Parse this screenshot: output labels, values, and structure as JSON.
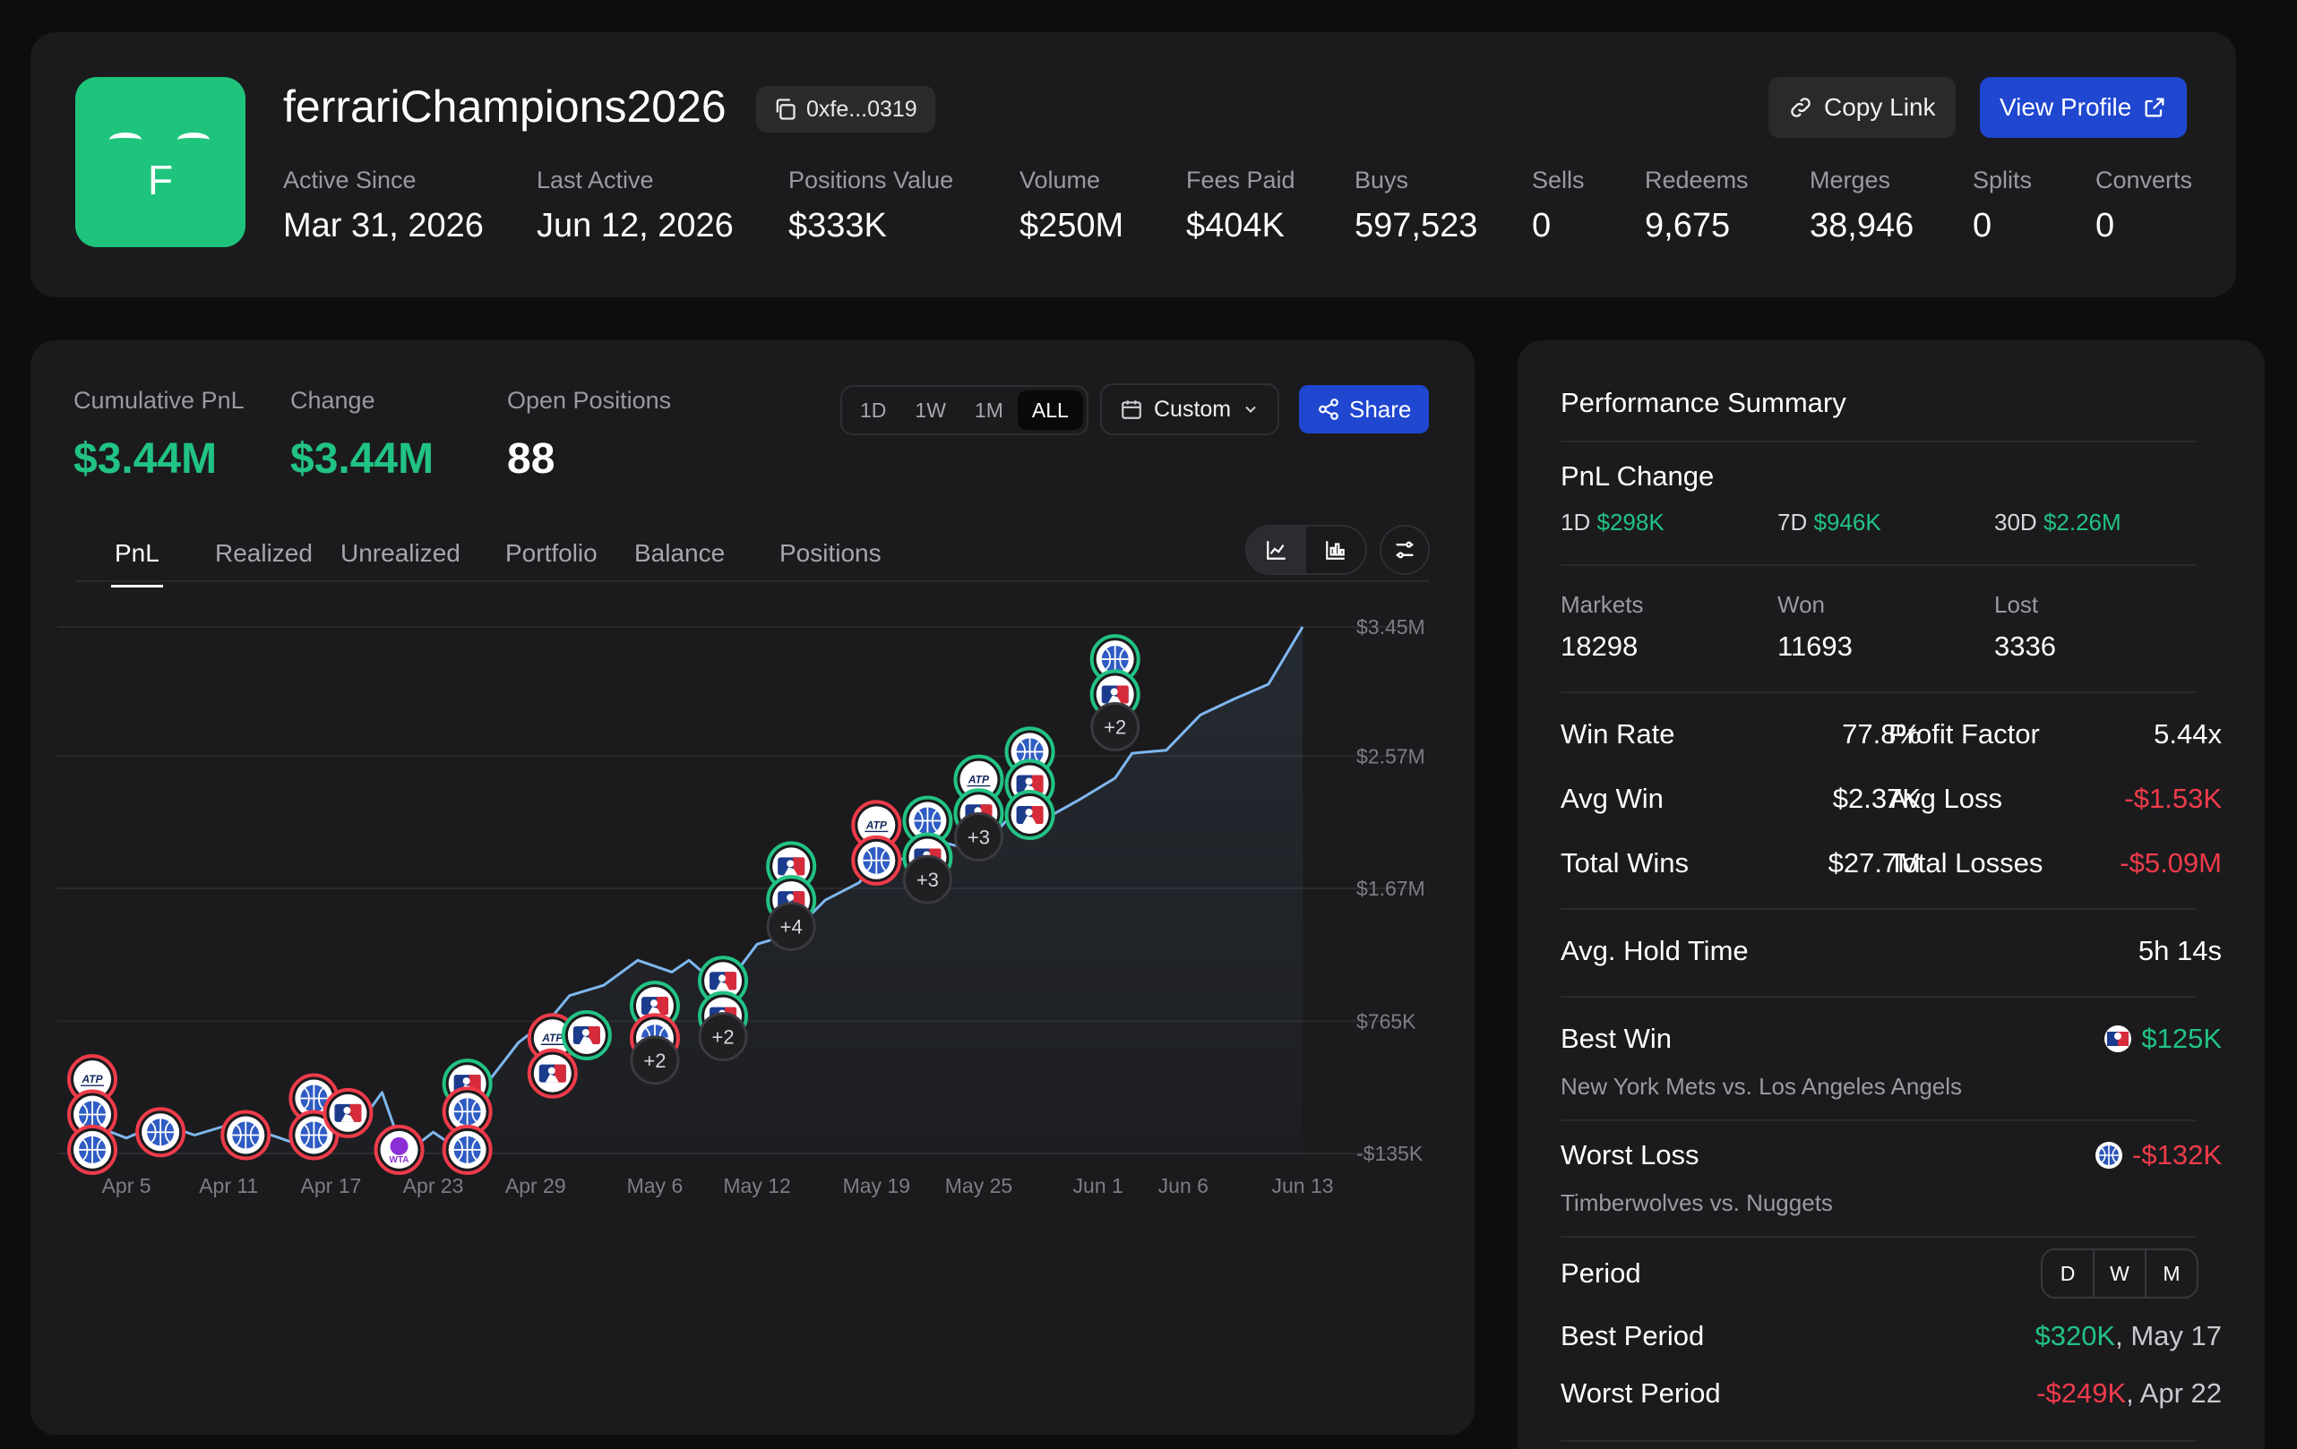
{
  "profile": {
    "avatar_letter": "F",
    "username": "ferrariChampions2026",
    "address": "0xfe...0319",
    "copy_link_label": "Copy Link",
    "view_profile_label": "View Profile",
    "stats": [
      {
        "label": "Active Since",
        "value": "Mar 31, 2026"
      },
      {
        "label": "Last Active",
        "value": "Jun 12, 2026"
      },
      {
        "label": "Positions Value",
        "value": "$333K"
      },
      {
        "label": "Volume",
        "value": "$250M"
      },
      {
        "label": "Fees Paid",
        "value": "$404K"
      },
      {
        "label": "Buys",
        "value": "597,523"
      },
      {
        "label": "Sells",
        "value": "0"
      },
      {
        "label": "Redeems",
        "value": "9,675"
      },
      {
        "label": "Merges",
        "value": "38,946"
      },
      {
        "label": "Splits",
        "value": "0"
      },
      {
        "label": "Converts",
        "value": "0"
      }
    ]
  },
  "pnl": {
    "metrics": [
      {
        "label": "Cumulative PnL",
        "value": "$3.44M"
      },
      {
        "label": "Change",
        "value": "$3.44M"
      },
      {
        "label": "Open Positions",
        "value": "88"
      }
    ],
    "ranges": [
      "1D",
      "1W",
      "1M",
      "ALL"
    ],
    "active_range": "ALL",
    "custom_label": "Custom",
    "share_label": "Share",
    "tabs": [
      "PnL",
      "Realized",
      "Unrealized",
      "Portfolio",
      "Balance",
      "Positions"
    ],
    "active_tab": "PnL"
  },
  "chart_data": {
    "type": "area",
    "x_tick_labels": [
      "Apr 5",
      "Apr 11",
      "Apr 17",
      "Apr 23",
      "Apr 29",
      "May 6",
      "May 12",
      "May 19",
      "May 25",
      "Jun 1",
      "Jun 6",
      "Jun 13"
    ],
    "y_tick_labels": [
      "$3.45M",
      "$2.57M",
      "$1.67M",
      "$765K",
      "-$135K"
    ],
    "y_ticks": [
      3450000,
      2570000,
      1670000,
      765000,
      -135000
    ],
    "ylim": [
      -135000,
      3450000
    ],
    "grid": true,
    "line_color": "#7fb7ef",
    "x": [
      "Apr 2",
      "Apr 3",
      "Apr 5",
      "Apr 7",
      "Apr 9",
      "Apr 11",
      "Apr 13",
      "Apr 15",
      "Apr 16",
      "Apr 17",
      "Apr 18",
      "Apr 19",
      "Apr 20",
      "Apr 21",
      "Apr 22",
      "Apr 23",
      "Apr 24",
      "Apr 25",
      "Apr 26",
      "Apr 28",
      "Apr 30",
      "May 1",
      "May 3",
      "May 5",
      "May 7",
      "May 8",
      "May 10",
      "May 12",
      "May 14",
      "May 16",
      "May 18",
      "May 19",
      "May 21",
      "May 23",
      "May 25",
      "May 27",
      "May 29",
      "May 31",
      "Jun 2",
      "Jun 3",
      "Jun 5",
      "Jun 7",
      "Jun 9",
      "Jun 11",
      "Jun 13"
    ],
    "values": [
      -20000,
      60000,
      -30000,
      70000,
      -10000,
      60000,
      10000,
      -70000,
      180000,
      100000,
      220000,
      120000,
      280000,
      -50000,
      -80000,
      10000,
      -70000,
      -100000,
      320000,
      620000,
      800000,
      940000,
      1010000,
      1180000,
      1100000,
      1180000,
      980000,
      1290000,
      1360000,
      1590000,
      1710000,
      1870000,
      1870000,
      1980000,
      1920000,
      2180000,
      2150000,
      2280000,
      2420000,
      2590000,
      2610000,
      2850000,
      2960000,
      3060000,
      3450000
    ],
    "markers": [
      {
        "x": "Apr 3",
        "y": 370000,
        "icon": "atp",
        "result": "loss"
      },
      {
        "x": "Apr 3",
        "y": 130000,
        "icon": "nba",
        "result": "loss"
      },
      {
        "x": "Apr 3",
        "y": -110000,
        "icon": "nba",
        "result": "loss"
      },
      {
        "x": "Apr 7",
        "y": 10000,
        "icon": "nba",
        "result": "loss"
      },
      {
        "x": "Apr 12",
        "y": -10000,
        "icon": "nba",
        "result": "loss"
      },
      {
        "x": "Apr 16",
        "y": 240000,
        "icon": "nba",
        "result": "loss"
      },
      {
        "x": "Apr 16",
        "y": -10000,
        "icon": "nba",
        "result": "loss"
      },
      {
        "x": "Apr 18",
        "y": 140000,
        "icon": "mlb",
        "result": "loss"
      },
      {
        "x": "Apr 21",
        "y": -110000,
        "icon": "wta",
        "result": "loss"
      },
      {
        "x": "Apr 25",
        "y": 340000,
        "icon": "mlb",
        "result": "win"
      },
      {
        "x": "Apr 25",
        "y": 150000,
        "icon": "nba",
        "result": "loss"
      },
      {
        "x": "Apr 25",
        "y": -110000,
        "icon": "nba",
        "result": "loss"
      },
      {
        "x": "Apr 30",
        "y": 650000,
        "icon": "atp",
        "result": "loss"
      },
      {
        "x": "Apr 30",
        "y": 410000,
        "icon": "mlb",
        "result": "loss"
      },
      {
        "x": "May 2",
        "y": 670000,
        "icon": "mlb",
        "result": "win"
      },
      {
        "x": "May 6",
        "y": 870000,
        "icon": "mlb",
        "result": "win"
      },
      {
        "x": "May 6",
        "y": 650000,
        "icon": "nba",
        "result": "loss"
      },
      {
        "x": "May 10",
        "y": 1040000,
        "icon": "mlb",
        "result": "win"
      },
      {
        "x": "May 10",
        "y": 800000,
        "icon": "mlb",
        "result": "win"
      },
      {
        "x": "May 14",
        "y": 1820000,
        "icon": "mlb",
        "result": "win"
      },
      {
        "x": "May 14",
        "y": 1590000,
        "icon": "mlb",
        "result": "win"
      },
      {
        "x": "May 19",
        "y": 2100000,
        "icon": "atp",
        "result": "loss"
      },
      {
        "x": "May 19",
        "y": 1860000,
        "icon": "nba",
        "result": "loss"
      },
      {
        "x": "May 22",
        "y": 2130000,
        "icon": "nba",
        "result": "win"
      },
      {
        "x": "May 22",
        "y": 1880000,
        "icon": "mlb",
        "result": "win"
      },
      {
        "x": "May 25",
        "y": 2410000,
        "icon": "atp",
        "result": "win"
      },
      {
        "x": "May 25",
        "y": 2180000,
        "icon": "mlb",
        "result": "win"
      },
      {
        "x": "May 28",
        "y": 2600000,
        "icon": "nba",
        "result": "win"
      },
      {
        "x": "May 28",
        "y": 2380000,
        "icon": "mlb",
        "result": "win"
      },
      {
        "x": "May 28",
        "y": 2170000,
        "icon": "mlb",
        "result": "win"
      },
      {
        "x": "Jun 2",
        "y": 3230000,
        "icon": "nba",
        "result": "win"
      },
      {
        "x": "Jun 2",
        "y": 2990000,
        "icon": "mlb",
        "result": "win"
      }
    ],
    "counters": [
      {
        "x": "May 6",
        "y": 500000,
        "label": "+2"
      },
      {
        "x": "May 10",
        "y": 660000,
        "label": "+2"
      },
      {
        "x": "May 14",
        "y": 1410000,
        "label": "+4"
      },
      {
        "x": "May 22",
        "y": 1730000,
        "label": "+3"
      },
      {
        "x": "May 25",
        "y": 2020000,
        "label": "+3"
      },
      {
        "x": "Jun 2",
        "y": 2770000,
        "label": "+2"
      }
    ]
  },
  "performance": {
    "title": "Performance Summary",
    "pnl_change_label": "PnL Change",
    "changes": [
      {
        "label": "1D",
        "value": "$298K"
      },
      {
        "label": "7D",
        "value": "$946K"
      },
      {
        "label": "30D",
        "value": "$2.26M"
      }
    ],
    "markets": {
      "label": "Markets",
      "value": "18298"
    },
    "won": {
      "label": "Won",
      "value": "11693"
    },
    "lost": {
      "label": "Lost",
      "value": "3336"
    },
    "win_rate": {
      "label": "Win Rate",
      "value": "77.8%"
    },
    "profit_factor": {
      "label": "Profit Factor",
      "value": "5.44x"
    },
    "avg_win": {
      "label": "Avg Win",
      "value": "$2.37K"
    },
    "avg_loss": {
      "label": "Avg Loss",
      "value": "-$1.53K"
    },
    "total_wins": {
      "label": "Total Wins",
      "value": "$27.7M"
    },
    "total_losses": {
      "label": "Total Losses",
      "value": "-$5.09M"
    },
    "avg_hold": {
      "label": "Avg. Hold Time",
      "value": "5h 14s"
    },
    "best_win": {
      "label": "Best Win",
      "value": "$125K",
      "icon": "mlb-icon",
      "market": "New York Mets vs. Los Angeles Angels"
    },
    "worst_loss": {
      "label": "Worst Loss",
      "value": "-$132K",
      "icon": "nba-icon",
      "market": "Timberwolves vs. Nuggets"
    },
    "period": {
      "label": "Period",
      "options": [
        "D",
        "W",
        "M"
      ]
    },
    "best_period": {
      "label": "Best Period",
      "value": "$320K",
      "date": ", May 17"
    },
    "worst_period": {
      "label": "Worst Period",
      "value": "-$249K",
      "date": ", Apr 22"
    }
  },
  "colors": {
    "green": "#21c384",
    "red": "#ef3b4a",
    "blue": "#1f47cf",
    "line": "#7fb7ef"
  }
}
